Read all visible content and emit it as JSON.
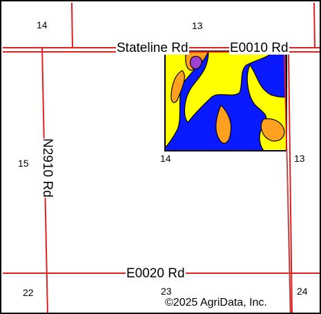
{
  "roads": {
    "stateline": "Stateline Rd",
    "e0010": "E0010 Rd",
    "e0020": "E0020 Rd",
    "n2910": "N2910 Rd"
  },
  "sections": {
    "top_left_14": "14",
    "top_mid_13": "13",
    "left_15": "15",
    "field_bottom_14": "14",
    "right_13": "13",
    "bottom_left_22": "22",
    "bottom_mid_23": "23",
    "bottom_right_24": "24"
  },
  "copyright": "©2025 AgriData, Inc.",
  "colors": {
    "road": "#e02020",
    "soil_blue": "#0a1aff",
    "soil_yellow": "#ffff00",
    "soil_orange": "#ffa020",
    "soil_purple": "#a040d0",
    "boundary": "#000000"
  }
}
